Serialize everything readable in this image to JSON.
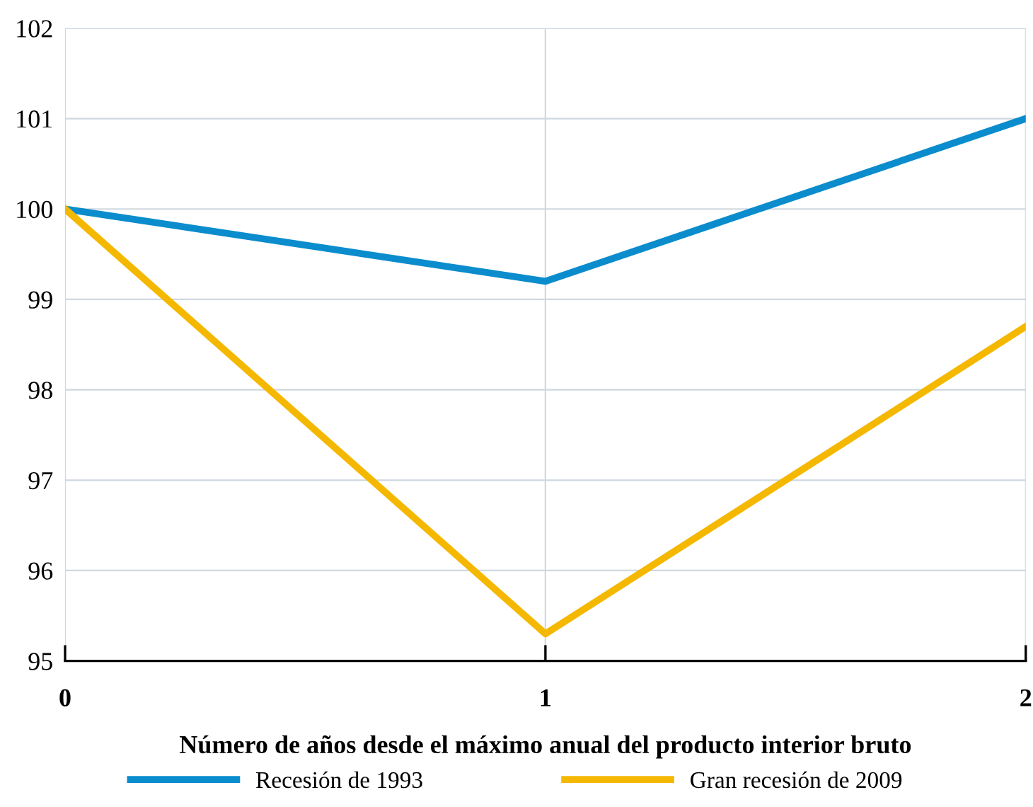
{
  "chart_data": {
    "type": "line",
    "xlabel": "Número de años desde el máximo anual del producto interior bruto",
    "x": [
      0,
      1,
      2
    ],
    "series": [
      {
        "name": "Recesión de 1993",
        "color": "#0a8ccd",
        "values": [
          100,
          99.2,
          101.0
        ]
      },
      {
        "name": "Gran recesión de 2009",
        "color": "#f5b800",
        "values": [
          100,
          95.3,
          98.7
        ]
      }
    ],
    "xlim": [
      0,
      2
    ],
    "xticks": [
      0,
      1,
      2
    ],
    "ylim": [
      95,
      102
    ],
    "yticks": [
      95,
      96,
      97,
      98,
      99,
      100,
      101,
      102
    ],
    "grid": true,
    "legend": "bottom",
    "marker": "none",
    "line_style": "solid"
  }
}
